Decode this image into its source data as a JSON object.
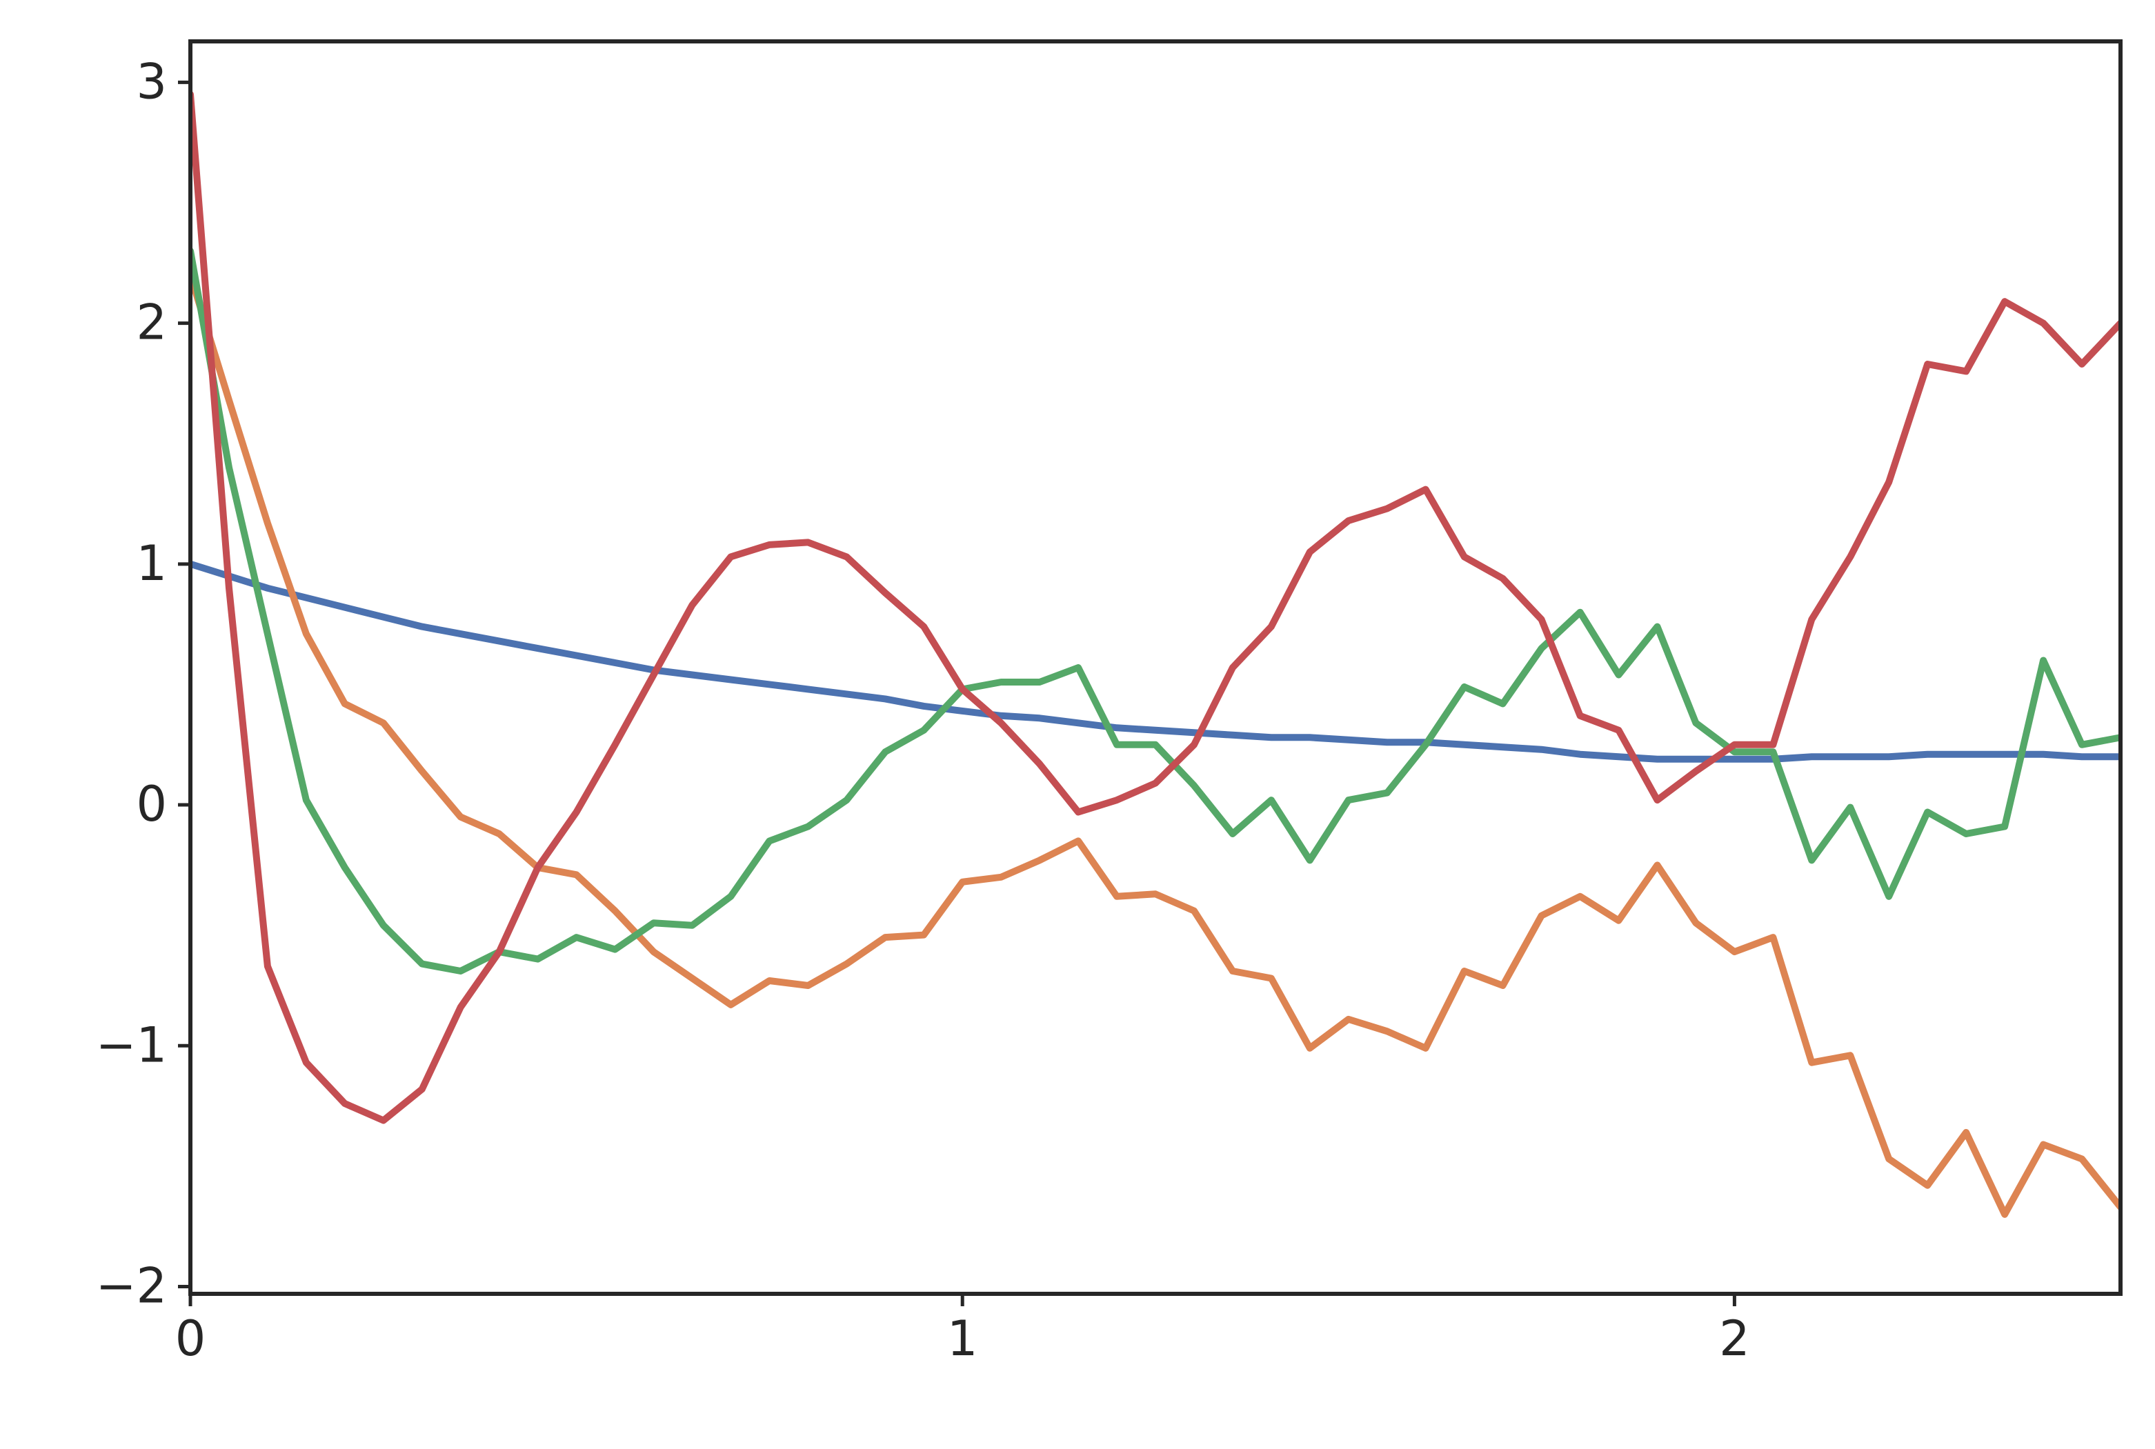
{
  "chart_data": {
    "type": "line",
    "x": [
      0,
      0.05,
      0.1,
      0.15,
      0.2,
      0.25,
      0.3,
      0.35,
      0.4,
      0.45,
      0.5,
      0.55,
      0.6,
      0.65,
      0.7,
      0.75,
      0.8,
      0.85,
      0.9,
      0.95,
      1.0,
      1.05,
      1.1,
      1.15,
      1.2,
      1.25,
      1.3,
      1.35,
      1.4,
      1.45,
      1.5,
      1.55,
      1.6,
      1.65,
      1.7,
      1.75,
      1.8,
      1.85,
      1.9,
      1.95,
      2.0,
      2.05,
      2.1,
      2.15,
      2.2,
      2.25,
      2.3,
      2.35,
      2.4,
      2.45,
      2.5
    ],
    "series": [
      {
        "color": "#4c72b0",
        "values": [
          1.0,
          0.95,
          0.9,
          0.86,
          0.82,
          0.78,
          0.74,
          0.71,
          0.68,
          0.65,
          0.62,
          0.59,
          0.56,
          0.54,
          0.52,
          0.5,
          0.48,
          0.46,
          0.44,
          0.41,
          0.39,
          0.37,
          0.36,
          0.34,
          0.32,
          0.31,
          0.3,
          0.29,
          0.28,
          0.28,
          0.27,
          0.26,
          0.26,
          0.25,
          0.24,
          0.23,
          0.21,
          0.2,
          0.19,
          0.19,
          0.19,
          0.19,
          0.2,
          0.2,
          0.2,
          0.21,
          0.21,
          0.21,
          0.21,
          0.2,
          0.2
        ]
      },
      {
        "color": "#dd8452",
        "values": [
          2.2,
          1.68,
          1.17,
          0.71,
          0.42,
          0.34,
          0.14,
          -0.05,
          -0.12,
          -0.26,
          -0.29,
          -0.44,
          -0.61,
          -0.72,
          -0.83,
          -0.73,
          -0.75,
          -0.66,
          -0.55,
          -0.54,
          -0.32,
          -0.3,
          -0.23,
          -0.15,
          -0.38,
          -0.37,
          -0.44,
          -0.69,
          -0.72,
          -1.01,
          -0.89,
          -0.94,
          -1.01,
          -0.69,
          -0.75,
          -0.46,
          -0.38,
          -0.48,
          -0.25,
          -0.49,
          -0.61,
          -0.55,
          -1.07,
          -1.04,
          -1.47,
          -1.58,
          -1.36,
          -1.7,
          -1.41,
          -1.47,
          -1.67
        ]
      },
      {
        "color": "#55a868",
        "values": [
          2.3,
          1.4,
          0.71,
          0.02,
          -0.26,
          -0.5,
          -0.66,
          -0.69,
          -0.61,
          -0.64,
          -0.55,
          -0.6,
          -0.49,
          -0.5,
          -0.38,
          -0.15,
          -0.09,
          0.02,
          0.22,
          0.31,
          0.48,
          0.51,
          0.51,
          0.57,
          0.25,
          0.25,
          0.08,
          -0.12,
          0.02,
          -0.23,
          0.02,
          0.05,
          0.25,
          0.49,
          0.42,
          0.65,
          0.8,
          0.54,
          0.74,
          0.34,
          0.22,
          0.22,
          -0.23,
          -0.01,
          -0.38,
          -0.03,
          -0.12,
          -0.09,
          0.6,
          0.25,
          0.28
        ]
      },
      {
        "color": "#c44e52",
        "values": [
          2.95,
          0.9,
          -0.67,
          -1.07,
          -1.24,
          -1.31,
          -1.18,
          -0.84,
          -0.61,
          -0.26,
          -0.03,
          0.25,
          0.54,
          0.83,
          1.03,
          1.08,
          1.09,
          1.03,
          0.88,
          0.74,
          0.48,
          0.34,
          0.17,
          -0.03,
          0.02,
          0.09,
          0.25,
          0.57,
          0.74,
          1.05,
          1.18,
          1.23,
          1.31,
          1.03,
          0.94,
          0.77,
          0.37,
          0.31,
          0.02,
          0.14,
          0.25,
          0.25,
          0.77,
          1.03,
          1.34,
          1.83,
          1.8,
          2.09,
          2.0,
          1.83,
          2.0
        ]
      }
    ],
    "xlim": [
      0,
      2.5
    ],
    "xticks": [
      0,
      1,
      2
    ],
    "ylim": [
      -2.03,
      3.17
    ],
    "yticks": [
      {
        "value": -2,
        "label": "−2"
      },
      {
        "value": -1,
        "label": "−1"
      },
      0,
      1,
      2,
      3
    ],
    "grid": false
  }
}
